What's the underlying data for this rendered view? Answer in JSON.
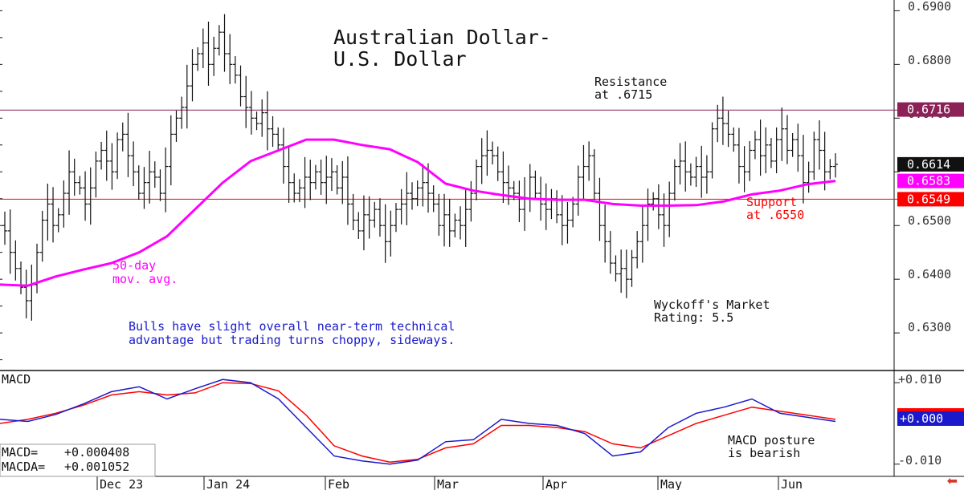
{
  "chart_data": {
    "type": "ohlc",
    "title": [
      "Australian Dollar-",
      "U.S. Dollar"
    ],
    "price_axis": {
      "ylim": [
        0.623,
        0.692
      ],
      "ticks": [
        "0.6900",
        "0.6800",
        "0.6700",
        "0.6600",
        "0.6500",
        "0.6400",
        "0.6300"
      ]
    },
    "horizontal_lines": [
      {
        "value": 0.6715,
        "color": "#8b2157"
      },
      {
        "value": 0.6549,
        "color": "#ff0000"
      }
    ],
    "price_tags": [
      {
        "label": "0.6716",
        "value": 0.6716,
        "bg": "#8b2157",
        "fg": "#ffffff"
      },
      {
        "label": "0.6614",
        "value": 0.6614,
        "bg": "#111111",
        "fg": "#ffffff"
      },
      {
        "label": "0.6583",
        "value": 0.6583,
        "bg": "#ff00ff",
        "fg": "#ffffff"
      },
      {
        "label": "0.6549",
        "value": 0.6549,
        "bg": "#ff0000",
        "fg": "#ffffff"
      }
    ],
    "annotations": [
      {
        "lines": [
          "Resistance",
          "at .6715"
        ],
        "color": "#111111"
      },
      {
        "lines": [
          "Support",
          "at .6550"
        ],
        "color": "#ff0000"
      },
      {
        "lines": [
          "50-day",
          "mov. avg."
        ],
        "color": "#ff00ff"
      },
      {
        "lines": [
          "Wyckoff's Market",
          "Rating: 5.5"
        ],
        "color": "#111111"
      },
      {
        "lines": [
          "Bulls have slight overall near-term technical",
          "advantage but trading turns choppy, sideways."
        ],
        "color": "#1a1acc"
      },
      {
        "lines": [
          "MACD posture",
          "is bearish"
        ],
        "color": "#111111"
      }
    ],
    "x_months": [
      "Dec 23",
      "Jan 24",
      "Feb",
      "Mar",
      "Apr",
      "May",
      "Jun"
    ],
    "closes": [
      0.649,
      0.645,
      0.642,
      0.6385,
      0.636,
      0.639,
      0.645,
      0.651,
      0.654,
      0.65,
      0.652,
      0.656,
      0.66,
      0.658,
      0.657,
      0.654,
      0.657,
      0.662,
      0.664,
      0.662,
      0.66,
      0.666,
      0.667,
      0.663,
      0.66,
      0.656,
      0.658,
      0.66,
      0.659,
      0.656,
      0.661,
      0.667,
      0.67,
      0.672,
      0.676,
      0.68,
      0.682,
      0.684,
      0.68,
      0.683,
      0.686,
      0.682,
      0.68,
      0.678,
      0.674,
      0.672,
      0.67,
      0.669,
      0.671,
      0.668,
      0.667,
      0.665,
      0.661,
      0.658,
      0.656,
      0.657,
      0.659,
      0.658,
      0.66,
      0.658,
      0.659,
      0.66,
      0.657,
      0.659,
      0.654,
      0.651,
      0.649,
      0.652,
      0.651,
      0.653,
      0.65,
      0.647,
      0.65,
      0.653,
      0.654,
      0.656,
      0.655,
      0.657,
      0.658,
      0.656,
      0.654,
      0.65,
      0.652,
      0.649,
      0.651,
      0.65,
      0.653,
      0.656,
      0.661,
      0.663,
      0.664,
      0.663,
      0.66,
      0.658,
      0.657,
      0.656,
      0.653,
      0.655,
      0.659,
      0.656,
      0.654,
      0.653,
      0.655,
      0.652,
      0.65,
      0.651,
      0.654,
      0.659,
      0.661,
      0.663,
      0.656,
      0.65,
      0.647,
      0.643,
      0.641,
      0.642,
      0.64,
      0.644,
      0.647,
      0.65,
      0.654,
      0.655,
      0.652,
      0.65,
      0.656,
      0.661,
      0.662,
      0.66,
      0.659,
      0.661,
      0.659,
      0.66,
      0.668,
      0.67,
      0.669,
      0.667,
      0.665,
      0.661,
      0.66,
      0.664,
      0.666,
      0.663,
      0.665,
      0.662,
      0.666,
      0.668,
      0.664,
      0.666,
      0.663,
      0.658,
      0.66,
      0.666,
      0.664,
      0.66,
      0.661,
      0.6614
    ],
    "moving_average": {
      "name": "50-day mov. avg.",
      "color": "#ff00ff",
      "values": [
        0.639,
        0.6388,
        0.6405,
        0.6418,
        0.643,
        0.645,
        0.648,
        0.653,
        0.658,
        0.662,
        0.664,
        0.666,
        0.666,
        0.665,
        0.6642,
        0.6618,
        0.6578,
        0.6565,
        0.6557,
        0.655,
        0.6548,
        0.6548,
        0.654,
        0.6537,
        0.6537,
        0.6538,
        0.6545,
        0.6558,
        0.6565,
        0.6577,
        0.6583
      ]
    },
    "macd": {
      "label": "MACD",
      "ylim": [
        -0.013,
        0.013
      ],
      "ticks": [
        "+0.010",
        "-0.010"
      ],
      "zero_tag": "+0.000",
      "macd_name": "MACD=",
      "macd_value": "+0.000408",
      "macda_name": "MACDA=",
      "macda_value": "+0.001052",
      "macd_line": [
        0.001,
        0.0005,
        0.0022,
        0.0048,
        0.0078,
        0.009,
        0.006,
        0.0085,
        0.0108,
        0.01,
        0.006,
        -0.001,
        -0.008,
        -0.0092,
        -0.01,
        -0.009,
        -0.0045,
        -0.004,
        0.001,
        0.0,
        -0.0005,
        -0.0025,
        -0.008,
        -0.007,
        -0.001,
        0.0025,
        0.004,
        0.006,
        0.0025,
        0.0015,
        0.0005
      ],
      "signal_line": [
        0.0,
        0.001,
        0.0025,
        0.0045,
        0.007,
        0.0078,
        0.007,
        0.0075,
        0.01,
        0.0098,
        0.008,
        0.002,
        -0.0055,
        -0.008,
        -0.0095,
        -0.0088,
        -0.006,
        -0.005,
        -0.0005,
        -0.0005,
        -0.001,
        -0.002,
        -0.005,
        -0.006,
        -0.003,
        0.0,
        0.002,
        0.004,
        0.003,
        0.002,
        0.001
      ],
      "macd_color": "#1a1acc",
      "signal_color": "#ff0000"
    }
  }
}
